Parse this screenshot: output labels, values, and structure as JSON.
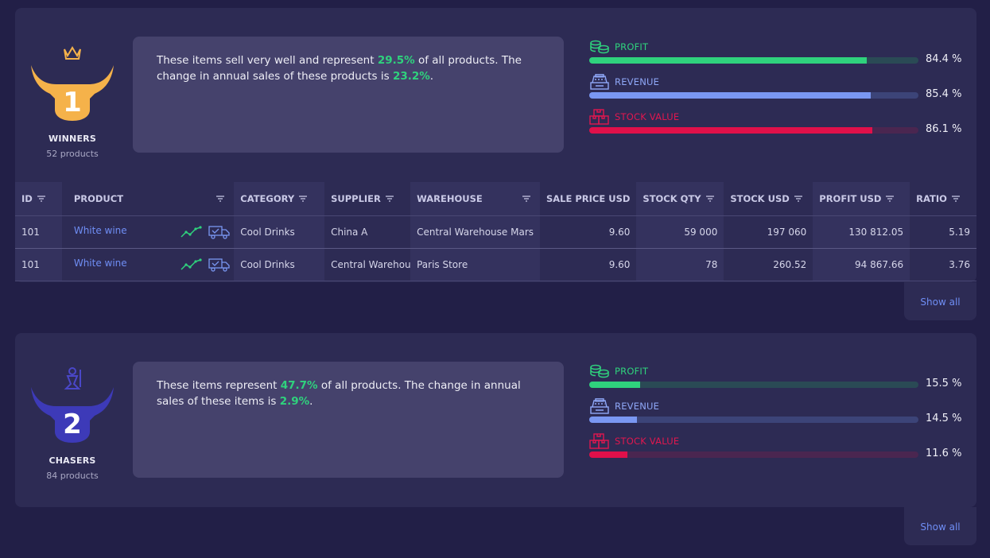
{
  "sections": [
    {
      "rank": "1",
      "title": "WINNERS",
      "products": "52 products",
      "desc_parts": [
        "These items sell very well and represent ",
        "29.5%",
        " of all products. The change in annual sales of these products is ",
        "23.2%",
        "."
      ],
      "metrics": [
        {
          "label": "PROFIT",
          "value": 84.4,
          "text": "84.4 %",
          "icon": "coins-icon"
        },
        {
          "label": "REVENUE",
          "value": 85.4,
          "text": "85.4 %",
          "icon": "cash-register-icon"
        },
        {
          "label": "STOCK VALUE",
          "value": 86.1,
          "text": "86.1 %",
          "icon": "boxes-icon"
        }
      ],
      "show_all": "Show all"
    },
    {
      "rank": "2",
      "title": "CHASERS",
      "products": "84 products",
      "desc_parts": [
        "These items represent ",
        "47.7%",
        " of all products. The change in annual sales of these items is ",
        "2.9%",
        "."
      ],
      "metrics": [
        {
          "label": "PROFIT",
          "value": 15.5,
          "text": "15.5 %",
          "icon": "coins-icon"
        },
        {
          "label": "REVENUE",
          "value": 14.5,
          "text": "14.5 %",
          "icon": "cash-register-icon"
        },
        {
          "label": "STOCK VALUE",
          "value": 11.6,
          "text": "11.6 %",
          "icon": "boxes-icon"
        }
      ],
      "show_all": "Show all"
    }
  ],
  "table": {
    "headers": [
      "ID",
      "PRODUCT",
      "CATEGORY",
      "SUPPLIER",
      "WAREHOUSE",
      "SALE PRICE USD",
      "STOCK QTY",
      "STOCK USD",
      "PROFIT USD",
      "RATIO"
    ],
    "rows": [
      [
        "101",
        "White wine",
        "Cool Drinks",
        "China A",
        "Central Warehouse Mars",
        "9.60",
        "59 000",
        "197 060",
        "130 812.05",
        "5.19"
      ],
      [
        "101",
        "White wine",
        "Cool Drinks",
        "Central Warehouse",
        "Paris Store",
        "9.60",
        "78",
        "260.52",
        "94 867.66",
        "3.76"
      ]
    ]
  },
  "colors": {
    "profit": "#2fd27d",
    "revenue": "#7a97f2",
    "stock": "#e0104a",
    "winner_badge": "#f5b24a",
    "chaser_badge": "#3d3ab8"
  }
}
